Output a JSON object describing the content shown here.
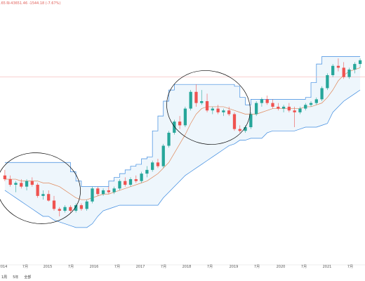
{
  "header": {
    "info_text": ".65 ₪-43651.46 -1544.18 (-7.67%)"
  },
  "footer": {
    "buttons": [
      "1周",
      "5年",
      "全部"
    ]
  },
  "colors": {
    "up": "#26a69a",
    "down": "#ef5350",
    "band_fill": "#eef6fc",
    "band_stroke": "#3d8be0",
    "ma": "#e0885a",
    "price_line": "#f3b6b6",
    "ellipse": "#000000"
  },
  "chart_data": {
    "type": "candlestick",
    "title": "",
    "xlabel": "",
    "ylabel": "",
    "x_ticks": [
      "2014",
      "7月",
      "2015",
      "7月",
      "2016",
      "7月",
      "2017",
      "7月",
      "2018",
      "7月",
      "2019",
      "7月",
      "2020",
      "7月",
      "2021",
      "7月"
    ],
    "candles": [
      {
        "o": 28,
        "h": 31,
        "l": 25,
        "c": 26
      },
      {
        "o": 26,
        "h": 28,
        "l": 22,
        "c": 23
      },
      {
        "o": 23,
        "h": 25,
        "l": 19,
        "c": 24
      },
      {
        "o": 24,
        "h": 26,
        "l": 21,
        "c": 22
      },
      {
        "o": 22,
        "h": 26,
        "l": 20,
        "c": 25
      },
      {
        "o": 25,
        "h": 27,
        "l": 22,
        "c": 23
      },
      {
        "o": 23,
        "h": 24,
        "l": 16,
        "c": 17
      },
      {
        "o": 17,
        "h": 20,
        "l": 15,
        "c": 18
      },
      {
        "o": 18,
        "h": 20,
        "l": 14,
        "c": 14.5
      },
      {
        "o": 14.5,
        "h": 17,
        "l": 9,
        "c": 10
      },
      {
        "o": 10,
        "h": 11,
        "l": 6,
        "c": 9
      },
      {
        "o": 9,
        "h": 12,
        "l": 8,
        "c": 11
      },
      {
        "o": 11,
        "h": 12,
        "l": 8,
        "c": 9
      },
      {
        "o": 9,
        "h": 13,
        "l": 8,
        "c": 12
      },
      {
        "o": 12,
        "h": 13,
        "l": 9,
        "c": 10
      },
      {
        "o": 10,
        "h": 15,
        "l": 9,
        "c": 14
      },
      {
        "o": 14,
        "h": 22,
        "l": 13,
        "c": 21
      },
      {
        "o": 21,
        "h": 22,
        "l": 17,
        "c": 18
      },
      {
        "o": 18,
        "h": 21,
        "l": 17,
        "c": 20
      },
      {
        "o": 20,
        "h": 22,
        "l": 18,
        "c": 19
      },
      {
        "o": 19,
        "h": 22,
        "l": 18,
        "c": 21
      },
      {
        "o": 21,
        "h": 26,
        "l": 20,
        "c": 25
      },
      {
        "o": 25,
        "h": 27,
        "l": 22,
        "c": 23
      },
      {
        "o": 23,
        "h": 27,
        "l": 22,
        "c": 26
      },
      {
        "o": 26,
        "h": 28,
        "l": 24,
        "c": 25
      },
      {
        "o": 25,
        "h": 30,
        "l": 24,
        "c": 29
      },
      {
        "o": 29,
        "h": 33,
        "l": 27,
        "c": 31
      },
      {
        "o": 31,
        "h": 36,
        "l": 30,
        "c": 35
      },
      {
        "o": 35,
        "h": 37,
        "l": 32,
        "c": 33
      },
      {
        "o": 33,
        "h": 45,
        "l": 32,
        "c": 44
      },
      {
        "o": 44,
        "h": 52,
        "l": 43,
        "c": 51
      },
      {
        "o": 51,
        "h": 58,
        "l": 50,
        "c": 57
      },
      {
        "o": 57,
        "h": 60,
        "l": 53,
        "c": 55
      },
      {
        "o": 55,
        "h": 65,
        "l": 54,
        "c": 64
      },
      {
        "o": 64,
        "h": 74,
        "l": 63,
        "c": 73
      },
      {
        "o": 73,
        "h": 77,
        "l": 65,
        "c": 67
      },
      {
        "o": 67,
        "h": 74,
        "l": 66,
        "c": 68
      },
      {
        "o": 68,
        "h": 72,
        "l": 62,
        "c": 63
      },
      {
        "o": 63,
        "h": 65,
        "l": 61,
        "c": 64
      },
      {
        "o": 64,
        "h": 66,
        "l": 61,
        "c": 62
      },
      {
        "o": 62,
        "h": 64,
        "l": 60,
        "c": 63
      },
      {
        "o": 63,
        "h": 65,
        "l": 60,
        "c": 61
      },
      {
        "o": 61,
        "h": 62,
        "l": 52,
        "c": 53
      },
      {
        "o": 53,
        "h": 55,
        "l": 51,
        "c": 52
      },
      {
        "o": 52,
        "h": 55,
        "l": 51,
        "c": 54
      },
      {
        "o": 54,
        "h": 62,
        "l": 53,
        "c": 61
      },
      {
        "o": 61,
        "h": 68,
        "l": 60,
        "c": 67
      },
      {
        "o": 67,
        "h": 70,
        "l": 65,
        "c": 69
      },
      {
        "o": 69,
        "h": 71,
        "l": 66,
        "c": 67
      },
      {
        "o": 67,
        "h": 69,
        "l": 64,
        "c": 65
      },
      {
        "o": 65,
        "h": 67,
        "l": 63,
        "c": 64
      },
      {
        "o": 64,
        "h": 66,
        "l": 62,
        "c": 65
      },
      {
        "o": 65,
        "h": 67,
        "l": 62,
        "c": 63
      },
      {
        "o": 63,
        "h": 65,
        "l": 54,
        "c": 62
      },
      {
        "o": 62,
        "h": 65,
        "l": 61,
        "c": 64
      },
      {
        "o": 64,
        "h": 67,
        "l": 63,
        "c": 66
      },
      {
        "o": 66,
        "h": 68,
        "l": 65,
        "c": 67
      },
      {
        "o": 67,
        "h": 70,
        "l": 66,
        "c": 69
      },
      {
        "o": 69,
        "h": 76,
        "l": 68,
        "c": 75
      },
      {
        "o": 75,
        "h": 83,
        "l": 74,
        "c": 82
      },
      {
        "o": 82,
        "h": 88,
        "l": 81,
        "c": 87
      },
      {
        "o": 87,
        "h": 91,
        "l": 84,
        "c": 86
      },
      {
        "o": 86,
        "h": 89,
        "l": 80,
        "c": 81
      },
      {
        "o": 81,
        "h": 86,
        "l": 80,
        "c": 85
      },
      {
        "o": 85,
        "h": 89,
        "l": 83,
        "c": 88
      },
      {
        "o": 88,
        "h": 91,
        "l": 86,
        "c": 90
      }
    ],
    "band_upper": [
      35,
      35,
      35,
      35,
      35,
      35,
      35,
      35,
      35,
      35,
      35,
      35,
      30,
      25,
      22,
      22,
      22,
      22,
      22,
      25,
      27,
      29,
      31,
      33,
      34,
      37,
      38,
      52,
      60,
      68,
      74,
      77,
      77,
      77,
      77,
      77,
      77,
      77,
      77,
      77,
      77,
      77,
      76,
      70,
      66,
      69,
      69,
      69,
      69,
      69,
      69,
      69,
      69,
      69,
      69,
      70,
      78,
      88,
      92,
      92,
      92,
      92,
      92,
      92,
      92,
      92
    ],
    "band_lower": [
      20,
      18,
      16,
      14,
      12,
      10,
      8,
      6,
      6,
      4,
      3,
      2,
      1,
      0,
      0,
      0,
      2,
      6,
      9,
      10,
      11,
      12,
      12,
      12,
      12,
      12,
      12,
      12,
      12,
      16,
      19,
      22,
      25,
      28,
      30,
      32,
      34,
      36,
      38,
      40,
      42,
      44,
      45,
      47,
      47,
      48,
      48,
      48,
      51,
      52,
      52,
      52,
      52,
      52,
      53,
      54,
      54,
      54,
      55,
      56,
      62,
      65,
      68,
      70,
      72,
      74
    ],
    "ma": [
      26,
      26,
      26,
      25,
      25,
      25,
      25,
      24,
      24,
      23,
      22,
      20,
      18,
      16,
      15,
      15,
      16,
      17,
      18,
      18,
      19,
      20,
      21,
      22,
      23,
      24,
      25,
      27,
      29,
      32,
      35,
      40,
      45,
      50,
      56,
      61,
      64,
      65,
      65,
      65,
      65,
      64,
      63,
      62,
      61,
      61,
      61,
      62,
      63,
      64,
      64,
      64,
      64,
      64,
      64,
      65,
      65,
      66,
      67,
      70,
      74,
      79,
      82,
      84,
      85,
      86
    ],
    "price_line_value": 81,
    "ylim": [
      -8,
      99
    ]
  }
}
